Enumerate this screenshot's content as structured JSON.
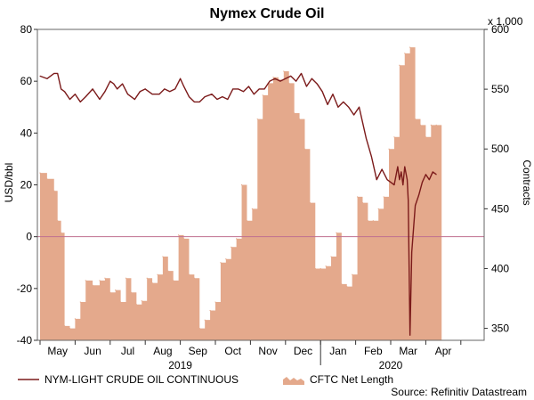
{
  "chart_data": {
    "type": "line",
    "title": "Nymex Crude Oil",
    "left_axis": {
      "label": "USD/bbl",
      "ylim": [
        -40,
        80
      ],
      "ticks": [
        -40,
        -20,
        0,
        20,
        40,
        60,
        80
      ]
    },
    "right_axis": {
      "label": "Contracts",
      "unit_label": "x 1,000",
      "ylim": [
        340,
        600
      ],
      "ticks": [
        350,
        400,
        450,
        500,
        550,
        600
      ]
    },
    "x_axis": {
      "months": [
        "May",
        "Jun",
        "Jul",
        "Aug",
        "Sep",
        "Oct",
        "Nov",
        "Dec",
        "Jan",
        "Feb",
        "Mar",
        "Apr"
      ],
      "years": [
        "2019",
        "2020"
      ]
    },
    "grid": false,
    "legend_position": "bottom",
    "series": [
      {
        "name": "NYM-LIGHT CRUDE OIL CONTINUOUS",
        "type": "line",
        "axis": "left",
        "color": "#7b1a1a",
        "x": [
          0,
          0.2,
          0.4,
          0.5,
          0.6,
          0.7,
          0.85,
          1.0,
          1.15,
          1.3,
          1.5,
          1.7,
          1.85,
          2.0,
          2.1,
          2.2,
          2.35,
          2.5,
          2.7,
          2.85,
          3.0,
          3.2,
          3.4,
          3.55,
          3.7,
          3.85,
          4.0,
          4.1,
          4.25,
          4.4,
          4.55,
          4.7,
          4.9,
          5.05,
          5.2,
          5.35,
          5.5,
          5.65,
          5.8,
          5.95,
          6.1,
          6.25,
          6.4,
          6.55,
          6.7,
          6.85,
          7.0,
          7.15,
          7.3,
          7.45,
          7.6,
          7.75,
          7.9,
          8.05,
          8.2,
          8.35,
          8.5,
          8.65,
          8.8,
          8.95,
          9.1,
          9.2,
          9.3,
          9.45,
          9.6,
          9.75,
          9.9,
          10.0,
          10.1,
          10.2,
          10.25,
          10.3,
          10.35,
          10.4,
          10.47,
          10.5,
          10.55,
          10.6,
          10.7,
          10.8,
          10.9,
          11.0,
          11.1,
          11.2,
          11.3
        ],
        "values": [
          62,
          61,
          63,
          63,
          57,
          56,
          53,
          55,
          52,
          54,
          57,
          53,
          56,
          60,
          59,
          57,
          59,
          55,
          53,
          56,
          57,
          55,
          55,
          57,
          56,
          57,
          61,
          58,
          54,
          52,
          52,
          54,
          55,
          53,
          54,
          53,
          57,
          57,
          56,
          58,
          55,
          57,
          57,
          60,
          61,
          60,
          61,
          62,
          60,
          63,
          58,
          61,
          59,
          56,
          51,
          55,
          50,
          52,
          50,
          47,
          50,
          44,
          38,
          31,
          22,
          26,
          22,
          21,
          20,
          27,
          22,
          25,
          20,
          27,
          22,
          14,
          -38,
          -6,
          12,
          16,
          21,
          24,
          22,
          25,
          24
        ]
      },
      {
        "name": "CFTC Net Length",
        "type": "area",
        "axis": "right",
        "color": "#e4a98c",
        "x": [
          0,
          0.2,
          0.4,
          0.5,
          0.6,
          0.7,
          0.85,
          1.0,
          1.15,
          1.3,
          1.5,
          1.7,
          1.85,
          2.0,
          2.15,
          2.3,
          2.45,
          2.6,
          2.75,
          2.9,
          3.05,
          3.2,
          3.35,
          3.5,
          3.65,
          3.8,
          3.95,
          4.1,
          4.25,
          4.4,
          4.55,
          4.7,
          4.85,
          5.0,
          5.15,
          5.3,
          5.45,
          5.6,
          5.75,
          5.9,
          6.05,
          6.2,
          6.35,
          6.5,
          6.65,
          6.8,
          6.95,
          7.1,
          7.25,
          7.4,
          7.55,
          7.7,
          7.85,
          8.0,
          8.15,
          8.3,
          8.45,
          8.6,
          8.75,
          8.9,
          9.05,
          9.2,
          9.35,
          9.5,
          9.65,
          9.8,
          9.95,
          10.1,
          10.25,
          10.4,
          10.55,
          10.7,
          10.85,
          11.0,
          11.15,
          11.3
        ],
        "values": [
          480,
          475,
          465,
          440,
          430,
          352,
          350,
          358,
          372,
          390,
          386,
          390,
          392,
          380,
          382,
          372,
          392,
          380,
          370,
          373,
          392,
          388,
          395,
          410,
          398,
          390,
          428,
          425,
          395,
          392,
          350,
          357,
          365,
          372,
          405,
          408,
          418,
          425,
          470,
          440,
          450,
          525,
          545,
          555,
          560,
          558,
          565,
          555,
          530,
          525,
          500,
          455,
          400,
          400,
          402,
          410,
          430,
          387,
          385,
          395,
          460,
          455,
          440,
          440,
          450,
          460,
          500,
          510,
          570,
          580,
          585,
          525,
          520,
          510,
          520,
          520
        ]
      }
    ],
    "source": "Source: Refinitiv Datastream"
  }
}
